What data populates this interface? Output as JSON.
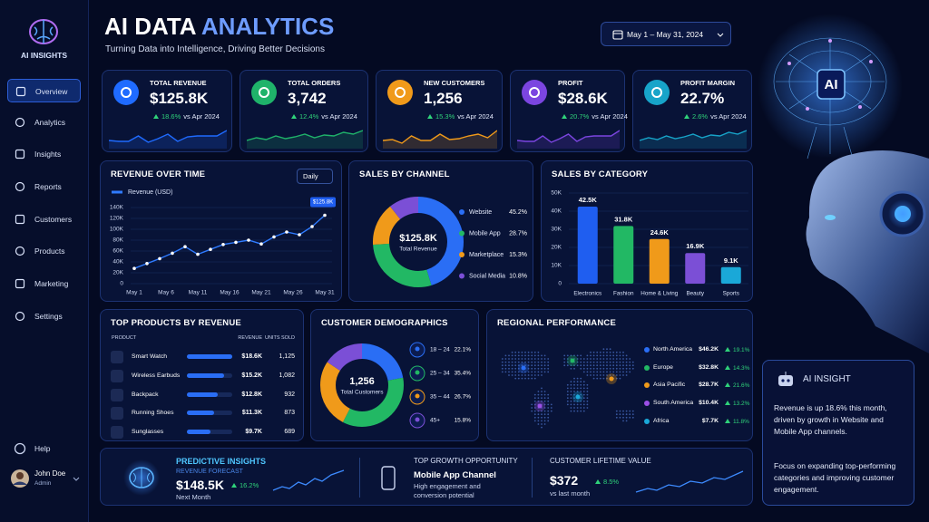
{
  "sidebar": {
    "brand": "AI INSIGHTS",
    "nav": [
      "Overview",
      "Analytics",
      "Insights",
      "Reports",
      "Customers",
      "Products",
      "Marketing",
      "Settings"
    ],
    "help": "Help",
    "user": {
      "name": "John Doe",
      "role": "Admin"
    }
  },
  "header": {
    "title_main": "AI DATA",
    "title_accent": "ANALYTICS",
    "subtitle": "Turning Data into Intelligence, Driving Better Decisions",
    "date_range": "May 1 – May 31, 2024"
  },
  "kpis": [
    {
      "label": "TOTAL REVENUE",
      "value": "$125.8K",
      "change": "18.6%",
      "compare": "vs Apr 2024",
      "color": "#1f6bff"
    },
    {
      "label": "TOTAL ORDERS",
      "value": "3,742",
      "change": "12.4%",
      "compare": "vs Apr 2024",
      "color": "#1fb36a"
    },
    {
      "label": "NEW CUSTOMERS",
      "value": "1,256",
      "change": "15.3%",
      "compare": "vs Apr 2024",
      "color": "#f09a1a"
    },
    {
      "label": "PROFIT",
      "value": "$28.6K",
      "change": "20.7%",
      "compare": "vs Apr 2024",
      "color": "#7b45e0"
    },
    {
      "label": "PROFIT MARGIN",
      "value": "22.7%",
      "change": "2.6%",
      "compare": "vs Apr 2024",
      "color": "#17a4c9"
    }
  ],
  "revenue_chart": {
    "type": "line",
    "title": "REVENUE OVER TIME",
    "period": "Daily",
    "x": [
      1,
      3,
      5,
      7,
      9,
      11,
      13,
      15,
      17,
      19,
      21,
      23,
      25,
      27,
      29,
      31
    ],
    "series": [
      {
        "name": "Revenue (USD)",
        "color": "#2f7bff",
        "values": [
          28,
          37,
          46,
          56,
          68,
          54,
          63,
          72,
          76,
          80,
          73,
          86,
          95,
          90,
          105,
          125.8
        ],
        "value_labels": [
          null,
          null,
          null,
          null,
          null,
          null,
          null,
          null,
          null,
          null,
          null,
          null,
          null,
          null,
          null,
          "$125.8K"
        ]
      }
    ],
    "xlim": [
      1,
      31
    ],
    "xticks": [
      {
        "value": 1,
        "label": "May 1"
      },
      {
        "value": 6,
        "label": "May 6"
      },
      {
        "value": 11,
        "label": "May 11"
      },
      {
        "value": 16,
        "label": "May 16"
      },
      {
        "value": 21,
        "label": "May 21"
      },
      {
        "value": 26,
        "label": "May 26"
      },
      {
        "value": 31,
        "label": "May 31"
      }
    ],
    "ylim": [
      0,
      140
    ],
    "yticks": [
      0,
      {
        "value": 20,
        "label": "20K"
      },
      {
        "value": 40,
        "label": "40K"
      },
      {
        "value": 60,
        "label": "60K"
      },
      {
        "value": 80,
        "label": "80K"
      },
      {
        "value": 100,
        "label": "100K"
      },
      {
        "value": 120,
        "label": "120K"
      },
      {
        "value": 140,
        "label": "140K"
      }
    ]
  },
  "channel_chart": {
    "type": "pie",
    "title": "SALES BY CHANNEL",
    "center_value": "$125.8K",
    "center_label": "Total Revenue",
    "categories": [
      "Website",
      "Mobile App",
      "Marketplace",
      "Social Media"
    ],
    "values": [
      45.2,
      28.7,
      15.3,
      10.8
    ],
    "value_labels": [
      "45.2%",
      "28.7%",
      "15.3%",
      "10.8%"
    ],
    "colors": [
      "#2a6ef5",
      "#22b864",
      "#f09a1a",
      "#7b4fd6"
    ]
  },
  "category_chart": {
    "type": "bar",
    "title": "SALES BY CATEGORY",
    "categories": [
      "Electronics",
      "Fashion",
      "Home & Living",
      "Beauty",
      "Sports"
    ],
    "values": [
      42.5,
      31.8,
      24.6,
      16.9,
      9.1
    ],
    "value_labels": [
      "42.5K",
      "31.8K",
      "24.6K",
      "16.9K",
      "9.1K"
    ],
    "colors": [
      "#1f5ef0",
      "#22b864",
      "#f09a1a",
      "#7b4fd6",
      "#1aa8d8"
    ],
    "ylim": [
      0,
      50
    ],
    "yticks": [
      0,
      {
        "value": 10,
        "label": "10K"
      },
      {
        "value": 20,
        "label": "20K"
      },
      {
        "value": 30,
        "label": "30K"
      },
      {
        "value": 40,
        "label": "40K"
      },
      {
        "value": 50,
        "label": "50K"
      }
    ]
  },
  "products": {
    "title": "TOP PRODUCTS BY REVENUE",
    "columns": [
      "PRODUCT",
      "REVENUE",
      "UNITS SOLD"
    ],
    "rows": [
      {
        "name": "Smart Watch",
        "revenue": 18.6,
        "revenue_label": "$18.6K",
        "units": "1,125"
      },
      {
        "name": "Wireless Earbuds",
        "revenue": 15.2,
        "revenue_label": "$15.2K",
        "units": "1,082"
      },
      {
        "name": "Backpack",
        "revenue": 12.8,
        "revenue_label": "$12.8K",
        "units": "932"
      },
      {
        "name": "Running Shoes",
        "revenue": 11.3,
        "revenue_label": "$11.3K",
        "units": "873"
      },
      {
        "name": "Sunglasses",
        "revenue": 9.7,
        "revenue_label": "$9.7K",
        "units": "689"
      }
    ]
  },
  "demographics": {
    "type": "pie",
    "title": "CUSTOMER DEMOGRAPHICS",
    "center_value": "1,256",
    "center_label": "Total Customers",
    "categories": [
      "18 – 24",
      "25 – 34",
      "35 – 44",
      "45+"
    ],
    "values": [
      22.1,
      35.4,
      26.7,
      15.8
    ],
    "value_labels": [
      "22.1%",
      "35.4%",
      "26.7%",
      "15.8%"
    ],
    "colors": [
      "#2a6ef5",
      "#22b864",
      "#f09a1a",
      "#7b4fd6"
    ]
  },
  "regions": {
    "title": "REGIONAL PERFORMANCE",
    "rows": [
      {
        "name": "North America",
        "revenue": "$46.2K",
        "change": "19.1%",
        "color": "#2a6ef5"
      },
      {
        "name": "Europe",
        "revenue": "$32.8K",
        "change": "14.3%",
        "color": "#22b864"
      },
      {
        "name": "Asia Pacific",
        "revenue": "$28.7K",
        "change": "21.6%",
        "color": "#f09a1a"
      },
      {
        "name": "South America",
        "revenue": "$10.4K",
        "change": "13.2%",
        "color": "#9b4fe6"
      },
      {
        "name": "Africa",
        "revenue": "$7.7K",
        "change": "11.8%",
        "color": "#1aa8d8"
      }
    ]
  },
  "bottom": {
    "predictive": {
      "title": "PREDICTIVE INSIGHTS",
      "subtitle": "REVENUE FORECAST",
      "value": "$148.5K",
      "change": "16.2%",
      "period": "Next Month"
    },
    "growth": {
      "title": "TOP GROWTH OPPORTUNITY",
      "name": "Mobile App Channel",
      "lines": [
        "High engagement and",
        "conversion potential"
      ]
    },
    "clv": {
      "title": "CUSTOMER LIFETIME VALUE",
      "value": "$372",
      "change": "8.5%",
      "period": "vs last month"
    }
  },
  "ai_badge": "AI",
  "ai_insight": {
    "title": "AI INSIGHT",
    "paragraphs": [
      "Revenue is up 18.6% this month, driven by growth in Website and Mobile App channels.",
      "Focus on expanding top-performing categories and improving customer engagement."
    ]
  }
}
